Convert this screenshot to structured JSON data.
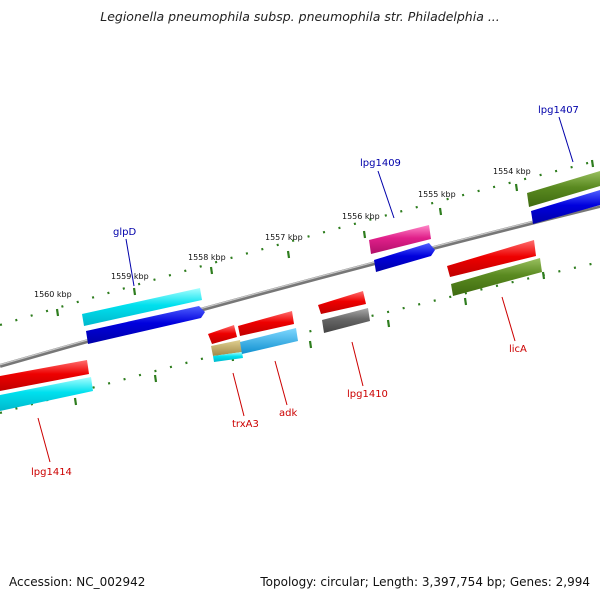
{
  "title": "Legionella pneumophila subsp. pneumophila str. Philadelphia ...",
  "footer": {
    "accession": "Accession: NC_002942",
    "summary": "Topology: circular; Length: 3,397,754 bp; Genes: 2,994"
  },
  "ticks": [
    "1560 kbp",
    "1559 kbp",
    "1558 kbp",
    "1557 kbp",
    "1556 kbp",
    "1555 kbp",
    "1554 kbp"
  ],
  "labels": {
    "top": [
      "glpD",
      "lpg1409",
      "lpg1407"
    ],
    "bottom": [
      "lpg1414",
      "trxA3",
      "adk",
      "lpg1410",
      "licA"
    ]
  },
  "colors": {
    "backbone": "#888888",
    "tick": "#2e7d1e",
    "label_top": "#0000aa",
    "label_bottom": "#cc0000",
    "red": "#ee0000",
    "cyan": "#00d8e8",
    "blue": "#0000dd",
    "magenta": "#e0208a",
    "olive": "#5a8a20",
    "gray": "#666666",
    "tan": "#b8a060",
    "steelblue": "#1aa0e0"
  }
}
